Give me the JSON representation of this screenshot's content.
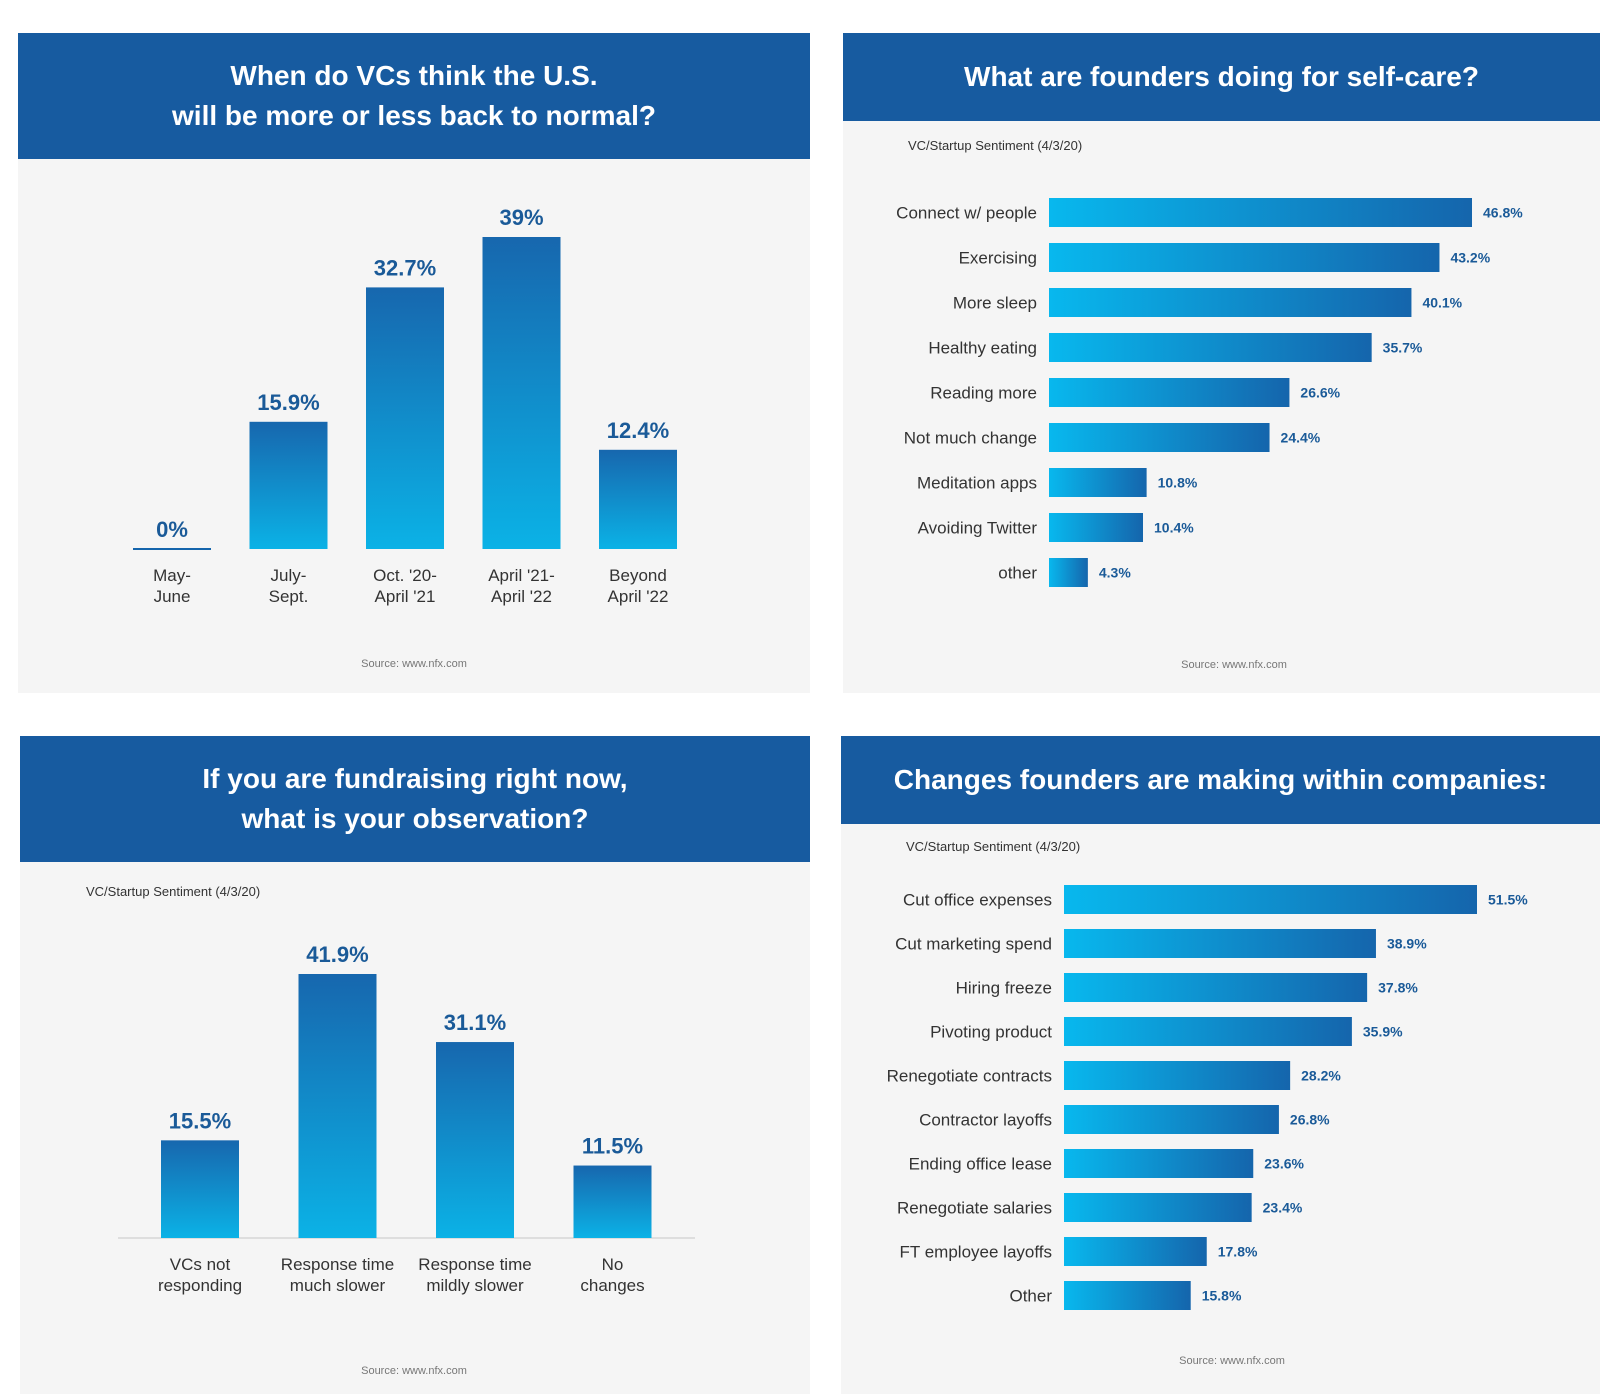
{
  "colors": {
    "header_bg": "#175ba0",
    "panel_bg": "#f5f5f5",
    "bar_top": "#1767ae",
    "bar_bottom": "#0bb2e6",
    "bar_left": "#08b8ee",
    "bar_right": "#1565ac",
    "value_label": "#1a5a98"
  },
  "panels": {
    "normal": {
      "title_lines": [
        "When do VCs think the U.S.",
        "will be more or less back to normal?"
      ],
      "source": "Source: www.nfx.com"
    },
    "selfcare": {
      "title_lines": [
        "What are founders doing for self-care?"
      ],
      "subtitle": "VC/Startup Sentiment (4/3/20)",
      "source": "Source: www.nfx.com"
    },
    "fundraising": {
      "title_lines": [
        "If you are fundraising right now,",
        "what is your observation?"
      ],
      "subtitle": "VC/Startup Sentiment (4/3/20)",
      "source": "Source: www.nfx.com"
    },
    "changes": {
      "title_lines": [
        "Changes founders are making within companies:"
      ],
      "subtitle": "VC/Startup Sentiment (4/3/20)",
      "source": "Source: www.nfx.com"
    }
  },
  "chart_data": [
    {
      "id": "normal",
      "type": "bar",
      "title": "When do VCs think the U.S. will be more or less back to normal?",
      "categories": [
        [
          "May-",
          "June"
        ],
        [
          "July-",
          "Sept."
        ],
        [
          "Oct. '20-",
          "April '21"
        ],
        [
          "April '21-",
          "April '22"
        ],
        [
          "Beyond",
          "April '22"
        ]
      ],
      "values": [
        0,
        15.9,
        32.7,
        39,
        12.4
      ],
      "value_labels": [
        "0%",
        "15.9%",
        "32.7%",
        "39%",
        "12.4%"
      ],
      "ylim": [
        0,
        39
      ],
      "xlabel": "",
      "ylabel": ""
    },
    {
      "id": "selfcare",
      "type": "bar",
      "orientation": "horizontal",
      "title": "What are founders doing for self-care?",
      "categories": [
        "Connect w/ people",
        "Exercising",
        "More sleep",
        "Healthy eating",
        "Reading more",
        "Not much change",
        "Meditation apps",
        "Avoiding Twitter",
        "other"
      ],
      "values": [
        46.8,
        43.2,
        40.1,
        35.7,
        26.6,
        24.4,
        10.8,
        10.4,
        4.3
      ],
      "value_labels": [
        "46.8%",
        "43.2%",
        "40.1%",
        "35.7%",
        "26.6%",
        "24.4%",
        "10.8%",
        "10.4%",
        "4.3%"
      ],
      "xlim": [
        0,
        46.8
      ]
    },
    {
      "id": "fundraising",
      "type": "bar",
      "title": "If you are fundraising right now, what is your observation?",
      "categories": [
        [
          "VCs not",
          "responding"
        ],
        [
          "Response time",
          "much slower"
        ],
        [
          "Response time",
          "mildly slower"
        ],
        [
          "No",
          "changes"
        ]
      ],
      "values": [
        15.5,
        41.9,
        31.1,
        11.5
      ],
      "value_labels": [
        "15.5%",
        "41.9%",
        "31.1%",
        "11.5%"
      ],
      "ylim": [
        0,
        41.9
      ]
    },
    {
      "id": "changes",
      "type": "bar",
      "orientation": "horizontal",
      "title": "Changes founders are making within companies:",
      "categories": [
        "Cut office expenses",
        "Cut marketing spend",
        "Hiring freeze",
        "Pivoting product",
        "Renegotiate contracts",
        "Contractor layoffs",
        "Ending office lease",
        "Renegotiate salaries",
        "FT employee layoffs",
        "Other"
      ],
      "values": [
        51.5,
        38.9,
        37.8,
        35.9,
        28.2,
        26.8,
        23.6,
        23.4,
        17.8,
        15.8
      ],
      "value_labels": [
        "51.5%",
        "38.9%",
        "37.8%",
        "35.9%",
        "28.2%",
        "26.8%",
        "23.6%",
        "23.4%",
        "17.8%",
        "15.8%"
      ],
      "xlim": [
        0,
        51.5
      ]
    }
  ]
}
